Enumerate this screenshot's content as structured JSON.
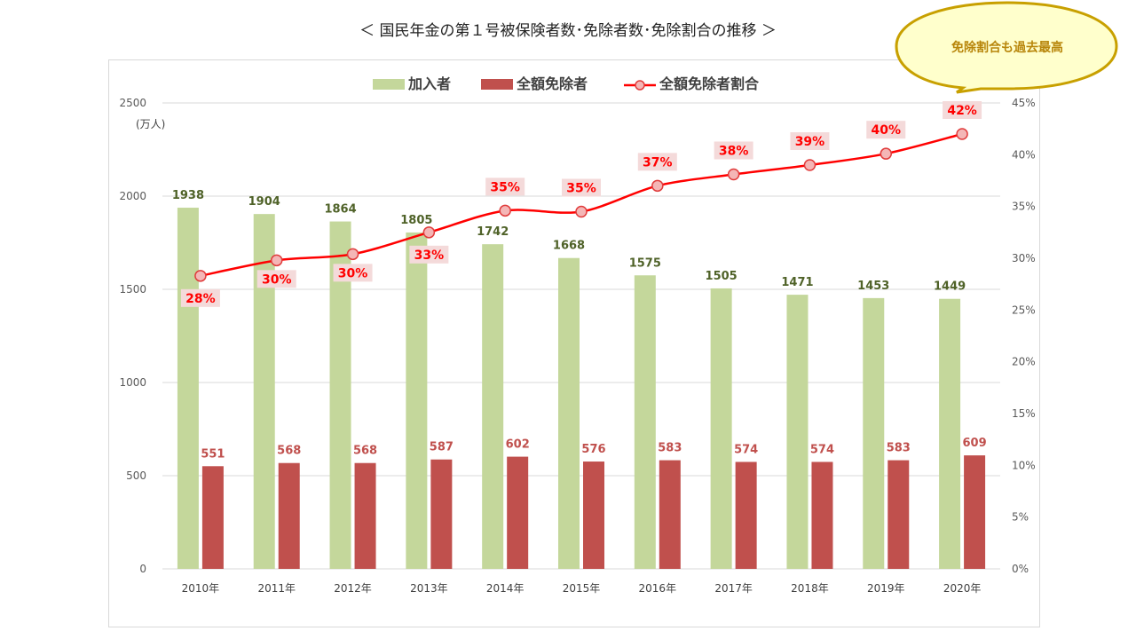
{
  "page": {
    "title": "＜ 国民年金の第１号被保険者数･免除者数･免除割合の推移 ＞",
    "callout": "免除割合も過去最高"
  },
  "chart_data": {
    "type": "bar",
    "title": "",
    "categories": [
      "2010年",
      "2011年",
      "2012年",
      "2013年",
      "2014年",
      "2015年",
      "2016年",
      "2017年",
      "2018年",
      "2019年",
      "2020年"
    ],
    "series": [
      {
        "name": "加入者",
        "type": "bar",
        "axis": "left",
        "color": "#c4d79b",
        "values": [
          1938,
          1904,
          1864,
          1805,
          1742,
          1668,
          1575,
          1505,
          1471,
          1453,
          1449
        ]
      },
      {
        "name": "全額免除者",
        "type": "bar",
        "axis": "left",
        "color": "#c0504d",
        "values": [
          551,
          568,
          568,
          587,
          602,
          576,
          583,
          574,
          574,
          583,
          609
        ]
      },
      {
        "name": "全額免除者割合",
        "type": "line",
        "axis": "right",
        "color": "#ff0000",
        "values": [
          28.3,
          29.8,
          30.4,
          32.5,
          34.6,
          34.5,
          37.0,
          38.1,
          39.0,
          40.1,
          42.0
        ],
        "labels": [
          "28%",
          "30%",
          "30%",
          "33%",
          "35%",
          "35%",
          "37%",
          "38%",
          "39%",
          "40%",
          "42%"
        ]
      }
    ],
    "y_left": {
      "label": "(万人)",
      "ylim": [
        0,
        2500
      ],
      "ticks": [
        0,
        500,
        1000,
        1500,
        2000,
        2500
      ]
    },
    "y_right": {
      "ylim": [
        0,
        45
      ],
      "ticks": [
        "0%",
        "5%",
        "10%",
        "15%",
        "20%",
        "25%",
        "30%",
        "35%",
        "40%",
        "45%"
      ]
    },
    "grid": true,
    "legend_position": "top"
  }
}
